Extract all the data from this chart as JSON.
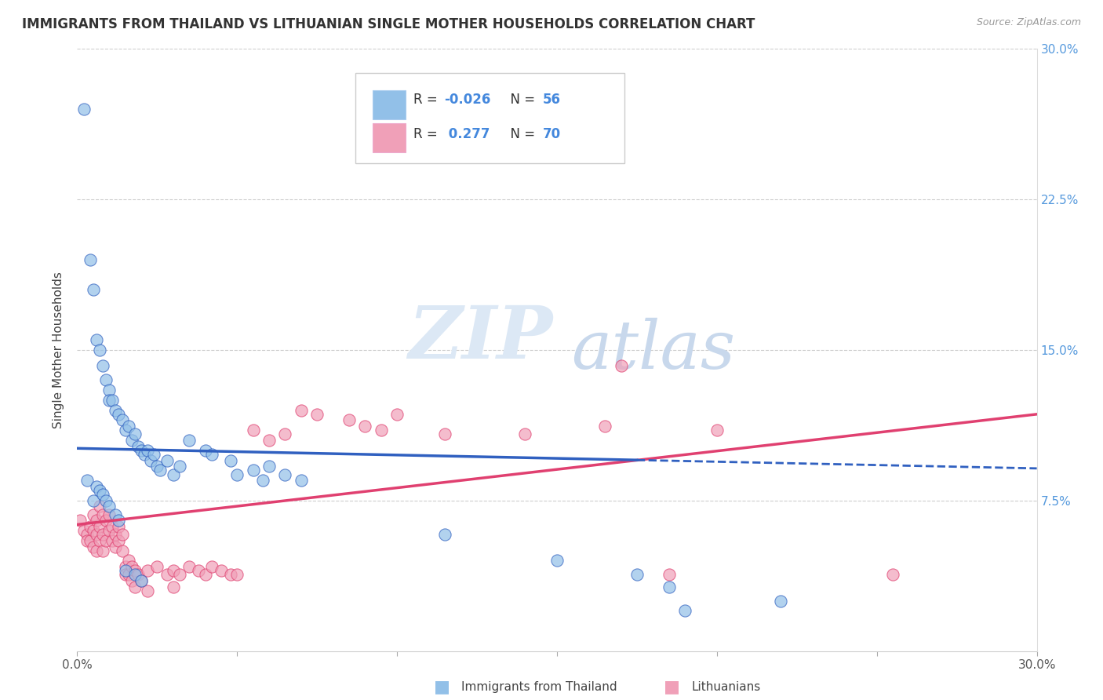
{
  "title": "IMMIGRANTS FROM THAILAND VS LITHUANIAN SINGLE MOTHER HOUSEHOLDS CORRELATION CHART",
  "source": "Source: ZipAtlas.com",
  "ylabel": "Single Mother Households",
  "xlim": [
    0.0,
    0.3
  ],
  "ylim": [
    0.0,
    0.3
  ],
  "blue_color": "#92C0E8",
  "pink_color": "#F0A0B8",
  "blue_line_color": "#3060C0",
  "pink_line_color": "#E04070",
  "blue_line_start_y": 0.101,
  "blue_line_end_y": 0.091,
  "pink_line_start_y": 0.063,
  "pink_line_end_y": 0.118,
  "thai_points": [
    [
      0.002,
      0.27
    ],
    [
      0.004,
      0.195
    ],
    [
      0.005,
      0.18
    ],
    [
      0.006,
      0.155
    ],
    [
      0.007,
      0.15
    ],
    [
      0.008,
      0.142
    ],
    [
      0.009,
      0.135
    ],
    [
      0.01,
      0.13
    ],
    [
      0.01,
      0.125
    ],
    [
      0.011,
      0.125
    ],
    [
      0.012,
      0.12
    ],
    [
      0.013,
      0.118
    ],
    [
      0.014,
      0.115
    ],
    [
      0.015,
      0.11
    ],
    [
      0.016,
      0.112
    ],
    [
      0.017,
      0.105
    ],
    [
      0.018,
      0.108
    ],
    [
      0.019,
      0.102
    ],
    [
      0.02,
      0.1
    ],
    [
      0.021,
      0.098
    ],
    [
      0.022,
      0.1
    ],
    [
      0.023,
      0.095
    ],
    [
      0.024,
      0.098
    ],
    [
      0.025,
      0.092
    ],
    [
      0.026,
      0.09
    ],
    [
      0.028,
      0.095
    ],
    [
      0.03,
      0.088
    ],
    [
      0.032,
      0.092
    ],
    [
      0.035,
      0.105
    ],
    [
      0.04,
      0.1
    ],
    [
      0.042,
      0.098
    ],
    [
      0.048,
      0.095
    ],
    [
      0.05,
      0.088
    ],
    [
      0.055,
      0.09
    ],
    [
      0.058,
      0.085
    ],
    [
      0.06,
      0.092
    ],
    [
      0.065,
      0.088
    ],
    [
      0.07,
      0.085
    ],
    [
      0.003,
      0.085
    ],
    [
      0.005,
      0.075
    ],
    [
      0.006,
      0.082
    ],
    [
      0.007,
      0.08
    ],
    [
      0.008,
      0.078
    ],
    [
      0.009,
      0.075
    ],
    [
      0.01,
      0.072
    ],
    [
      0.012,
      0.068
    ],
    [
      0.013,
      0.065
    ],
    [
      0.015,
      0.04
    ],
    [
      0.018,
      0.038
    ],
    [
      0.02,
      0.035
    ],
    [
      0.115,
      0.058
    ],
    [
      0.15,
      0.045
    ],
    [
      0.175,
      0.038
    ],
    [
      0.185,
      0.032
    ],
    [
      0.19,
      0.02
    ],
    [
      0.22,
      0.025
    ]
  ],
  "lith_points": [
    [
      0.001,
      0.065
    ],
    [
      0.002,
      0.06
    ],
    [
      0.003,
      0.058
    ],
    [
      0.003,
      0.055
    ],
    [
      0.004,
      0.062
    ],
    [
      0.004,
      0.055
    ],
    [
      0.005,
      0.068
    ],
    [
      0.005,
      0.06
    ],
    [
      0.005,
      0.052
    ],
    [
      0.006,
      0.065
    ],
    [
      0.006,
      0.058
    ],
    [
      0.006,
      0.05
    ],
    [
      0.007,
      0.072
    ],
    [
      0.007,
      0.062
    ],
    [
      0.007,
      0.055
    ],
    [
      0.008,
      0.068
    ],
    [
      0.008,
      0.058
    ],
    [
      0.008,
      0.05
    ],
    [
      0.009,
      0.065
    ],
    [
      0.009,
      0.055
    ],
    [
      0.01,
      0.068
    ],
    [
      0.01,
      0.06
    ],
    [
      0.011,
      0.062
    ],
    [
      0.011,
      0.055
    ],
    [
      0.012,
      0.058
    ],
    [
      0.012,
      0.052
    ],
    [
      0.013,
      0.062
    ],
    [
      0.013,
      0.055
    ],
    [
      0.014,
      0.058
    ],
    [
      0.014,
      0.05
    ],
    [
      0.015,
      0.042
    ],
    [
      0.015,
      0.038
    ],
    [
      0.016,
      0.045
    ],
    [
      0.016,
      0.038
    ],
    [
      0.017,
      0.042
    ],
    [
      0.017,
      0.035
    ],
    [
      0.018,
      0.04
    ],
    [
      0.018,
      0.032
    ],
    [
      0.019,
      0.038
    ],
    [
      0.02,
      0.035
    ],
    [
      0.022,
      0.04
    ],
    [
      0.022,
      0.03
    ],
    [
      0.025,
      0.042
    ],
    [
      0.028,
      0.038
    ],
    [
      0.03,
      0.04
    ],
    [
      0.03,
      0.032
    ],
    [
      0.032,
      0.038
    ],
    [
      0.035,
      0.042
    ],
    [
      0.038,
      0.04
    ],
    [
      0.04,
      0.038
    ],
    [
      0.042,
      0.042
    ],
    [
      0.045,
      0.04
    ],
    [
      0.048,
      0.038
    ],
    [
      0.05,
      0.038
    ],
    [
      0.055,
      0.11
    ],
    [
      0.06,
      0.105
    ],
    [
      0.065,
      0.108
    ],
    [
      0.07,
      0.12
    ],
    [
      0.075,
      0.118
    ],
    [
      0.085,
      0.115
    ],
    [
      0.09,
      0.112
    ],
    [
      0.095,
      0.11
    ],
    [
      0.1,
      0.118
    ],
    [
      0.115,
      0.108
    ],
    [
      0.14,
      0.108
    ],
    [
      0.165,
      0.112
    ],
    [
      0.17,
      0.142
    ],
    [
      0.185,
      0.038
    ],
    [
      0.2,
      0.11
    ],
    [
      0.255,
      0.038
    ]
  ]
}
